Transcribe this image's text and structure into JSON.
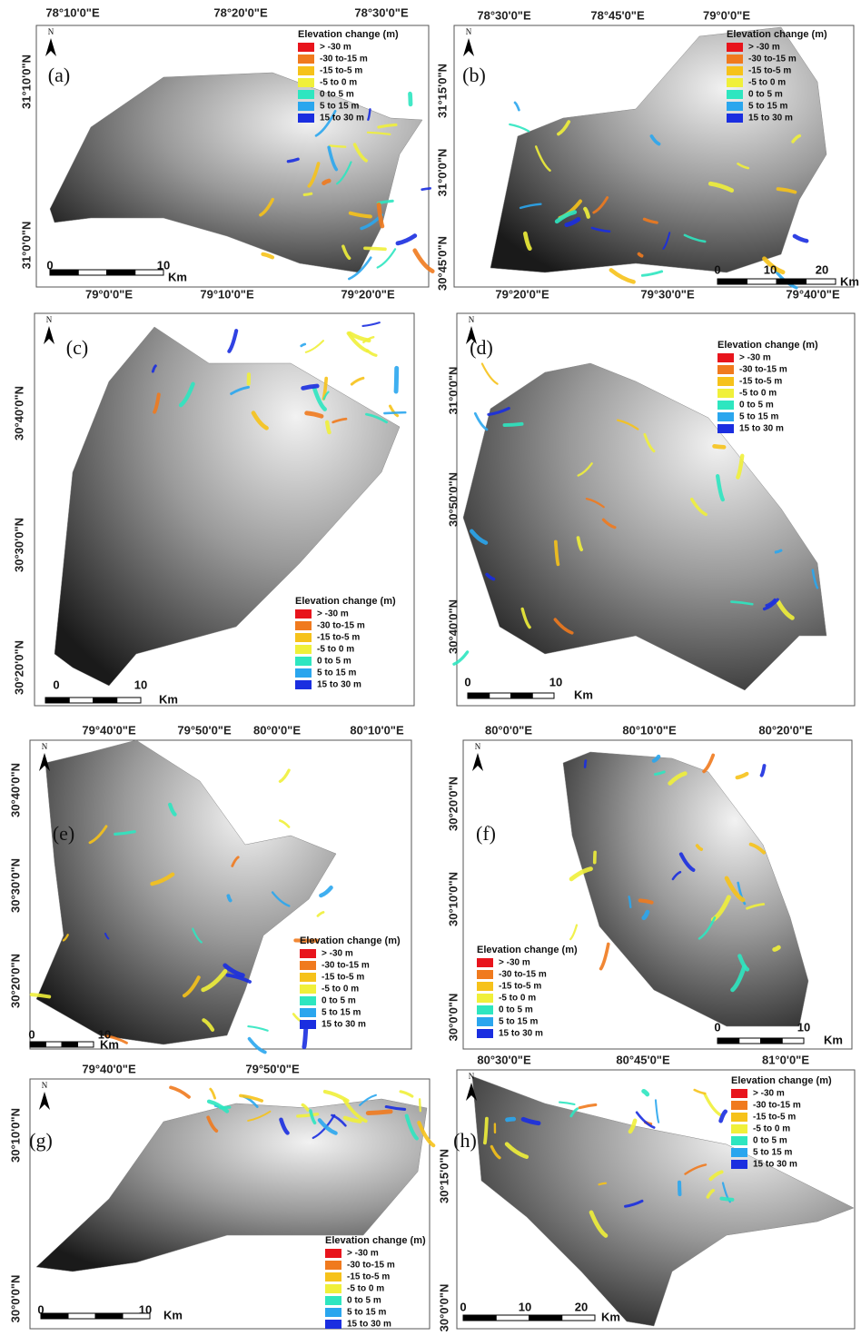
{
  "panels": [
    {
      "label": "(a)",
      "lon_labels": [
        "78°10'0\"E",
        "78°20'0\"E",
        "78°30'0\"E"
      ],
      "lat_labels": [
        "31°10'0\"N",
        "31°0'0\"N"
      ],
      "scale_labels": [
        "0",
        "10"
      ],
      "scale_unit": "Km"
    },
    {
      "label": "(b)",
      "lon_labels": [
        "78°30'0\"E",
        "78°45'0\"E",
        "79°0'0\"E"
      ],
      "lat_labels": [
        "31°15'0\"N",
        "31°0'0\"N",
        "30°45'0\"N"
      ],
      "scale_labels": [
        "0",
        "10",
        "20"
      ],
      "scale_unit": "Km"
    },
    {
      "label": "(c)",
      "lon_labels": [
        "79°0'0\"E",
        "79°10'0\"E",
        "79°20'0\"E"
      ],
      "lat_labels": [
        "30°40'0\"N",
        "30°30'0\"N",
        "30°20'0\"N"
      ],
      "scale_labels": [
        "0",
        "10"
      ],
      "scale_unit": "Km"
    },
    {
      "label": "(d)",
      "lon_labels": [
        "79°20'0\"E",
        "79°30'0\"E",
        "79°40'0\"E"
      ],
      "lat_labels": [
        "31°0'0\"N",
        "30°50'0\"N",
        "30°40'0\"N"
      ],
      "scale_labels": [
        "0",
        "10"
      ],
      "scale_unit": "Km"
    },
    {
      "label": "(e)",
      "lon_labels": [
        "79°40'0\"E",
        "79°50'0\"E",
        "80°0'0\"E",
        "80°10'0\"E"
      ],
      "lat_labels": [
        "30°40'0\"N",
        "30°30'0\"N",
        "30°20'0\"N"
      ],
      "scale_labels": [
        "0",
        "10"
      ],
      "scale_unit": "Km"
    },
    {
      "label": "(f)",
      "lon_labels": [
        "80°0'0\"E",
        "80°10'0\"E",
        "80°20'0\"E"
      ],
      "lat_labels": [
        "30°20'0\"N",
        "30°10'0\"N",
        "30°0'0\"N"
      ],
      "scale_labels": [
        "0",
        "10"
      ],
      "scale_unit": "Km"
    },
    {
      "label": "(g)",
      "lon_labels": [
        "79°40'0\"E",
        "79°50'0\"E"
      ],
      "lat_labels": [
        "30°10'0\"N",
        "30°0'0\"N"
      ],
      "scale_labels": [
        "0",
        "10"
      ],
      "scale_unit": "Km"
    },
    {
      "label": "(h)",
      "lon_labels": [
        "80°30'0\"E",
        "80°45'0\"E",
        "81°0'0\"E"
      ],
      "lat_labels": [
        "30°15'0\"N",
        "30°0'0\"N"
      ],
      "scale_labels": [
        "0",
        "10",
        "20"
      ],
      "scale_unit": "Km"
    }
  ],
  "north_label": "N",
  "legend": {
    "title": "Elevation change (m)",
    "items": [
      {
        "label": "> -30 m",
        "color": "#e8141c"
      },
      {
        "label": "-30 to-15 m",
        "color": "#f07a1e"
      },
      {
        "label": "-15 to-5 m",
        "color": "#f6c21a"
      },
      {
        "label": "-5 to 0 m",
        "color": "#f0f03a"
      },
      {
        "label": "0 to 5 m",
        "color": "#2ee6c0"
      },
      {
        "label": "5 to 15 m",
        "color": "#2aa6ee"
      },
      {
        "label": "15 to 30 m",
        "color": "#1a2ee0"
      }
    ]
  }
}
